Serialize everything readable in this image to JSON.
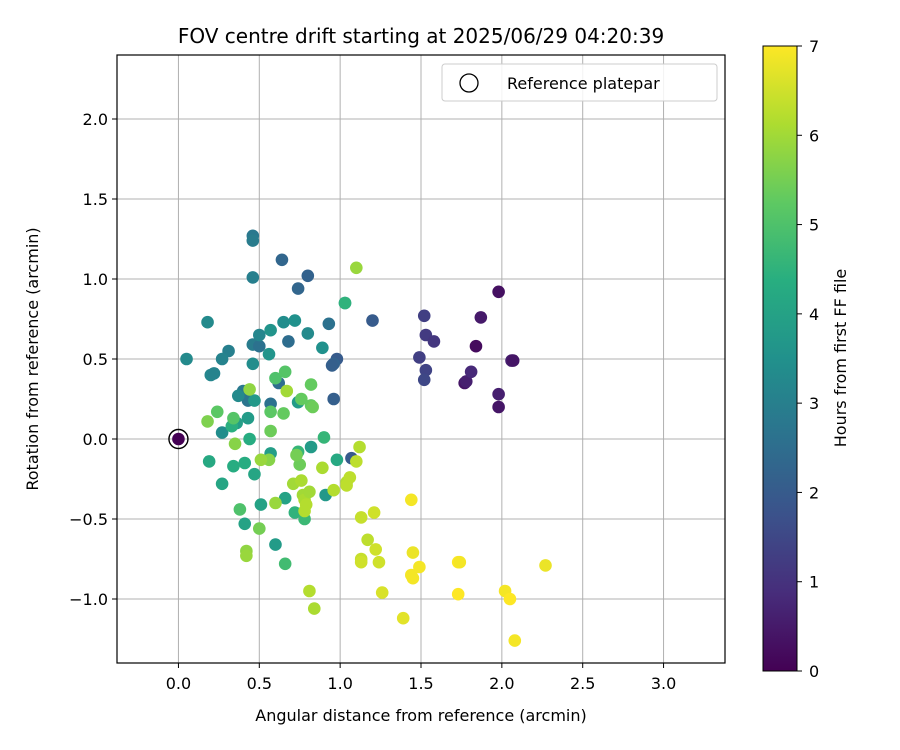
{
  "chart_data": {
    "type": "scatter",
    "title": "FOV centre drift starting at 2025/06/29 04:20:39",
    "xlabel": "Angular distance from reference (arcmin)",
    "ylabel": "Rotation from reference (arcmin)",
    "xlim": [
      -0.38,
      3.38
    ],
    "ylim": [
      -1.4,
      2.4
    ],
    "xticks": [
      "0.0",
      "0.5",
      "1.0",
      "1.5",
      "2.0",
      "2.5",
      "3.0"
    ],
    "xtick_values": [
      0,
      0.5,
      1,
      1.5,
      2,
      2.5,
      3
    ],
    "yticks": [
      "2.0",
      "1.5",
      "1.0",
      "0.5",
      "0.0",
      "−0.5",
      "−1.0"
    ],
    "ytick_values": [
      2,
      1.5,
      1,
      0.5,
      0,
      -0.5,
      -1
    ],
    "grid": true,
    "legend": {
      "label": "Reference platepar",
      "placement": "upper right"
    },
    "reference_point": {
      "x": 0.0,
      "y": 0.0
    },
    "colorbar": {
      "label": "Hours from first FF file",
      "colormap": "viridis",
      "range": [
        0,
        7
      ],
      "ticks": [
        "0",
        "1",
        "2",
        "3",
        "4",
        "5",
        "6",
        "7"
      ]
    },
    "points": [
      {
        "x": 0.0,
        "y": 0.0,
        "h": 0.0
      },
      {
        "x": 1.98,
        "y": 0.92,
        "h": 0.3
      },
      {
        "x": 1.84,
        "y": 0.58,
        "h": 0.2
      },
      {
        "x": 1.87,
        "y": 0.76,
        "h": 0.5
      },
      {
        "x": 2.06,
        "y": 0.49,
        "h": 0.6
      },
      {
        "x": 2.07,
        "y": 0.49,
        "h": 0.4
      },
      {
        "x": 1.77,
        "y": 0.35,
        "h": 0.4
      },
      {
        "x": 1.78,
        "y": 0.36,
        "h": 0.6
      },
      {
        "x": 1.81,
        "y": 0.42,
        "h": 0.8
      },
      {
        "x": 1.98,
        "y": 0.28,
        "h": 0.6
      },
      {
        "x": 1.98,
        "y": 0.2,
        "h": 0.4
      },
      {
        "x": 1.52,
        "y": 0.77,
        "h": 1.3
      },
      {
        "x": 1.53,
        "y": 0.65,
        "h": 1.2
      },
      {
        "x": 1.58,
        "y": 0.61,
        "h": 1.1
      },
      {
        "x": 1.49,
        "y": 0.51,
        "h": 1.3
      },
      {
        "x": 1.53,
        "y": 0.43,
        "h": 1.4
      },
      {
        "x": 1.52,
        "y": 0.37,
        "h": 1.5
      },
      {
        "x": 1.2,
        "y": 0.74,
        "h": 2.0
      },
      {
        "x": 0.98,
        "y": 0.5,
        "h": 2.0
      },
      {
        "x": 0.96,
        "y": 0.47,
        "h": 2.2
      },
      {
        "x": 0.95,
        "y": 0.46,
        "h": 2.1
      },
      {
        "x": 0.96,
        "y": 0.25,
        "h": 2.1
      },
      {
        "x": 1.07,
        "y": -0.12,
        "h": 2.0
      },
      {
        "x": 0.8,
        "y": 1.02,
        "h": 2.2
      },
      {
        "x": 0.64,
        "y": 1.12,
        "h": 2.3
      },
      {
        "x": 0.74,
        "y": 0.94,
        "h": 2.3
      },
      {
        "x": 0.46,
        "y": 1.27,
        "h": 2.8
      },
      {
        "x": 0.46,
        "y": 1.24,
        "h": 2.9
      },
      {
        "x": 0.46,
        "y": 1.01,
        "h": 3.0
      },
      {
        "x": 0.93,
        "y": 0.72,
        "h": 2.6
      },
      {
        "x": 0.68,
        "y": 0.61,
        "h": 2.5
      },
      {
        "x": 0.62,
        "y": 0.35,
        "h": 2.5
      },
      {
        "x": 0.57,
        "y": 0.22,
        "h": 2.6
      },
      {
        "x": 0.4,
        "y": 0.3,
        "h": 2.8
      },
      {
        "x": 0.46,
        "y": 0.59,
        "h": 2.9
      },
      {
        "x": 0.5,
        "y": 0.58,
        "h": 2.6
      },
      {
        "x": 0.43,
        "y": 0.24,
        "h": 2.7
      },
      {
        "x": 0.31,
        "y": 0.55,
        "h": 3.0
      },
      {
        "x": 0.27,
        "y": 0.5,
        "h": 3.1
      },
      {
        "x": 0.2,
        "y": 0.4,
        "h": 3.2
      },
      {
        "x": 0.22,
        "y": 0.41,
        "h": 3.1
      },
      {
        "x": 0.05,
        "y": 0.5,
        "h": 3.3
      },
      {
        "x": 0.18,
        "y": 0.73,
        "h": 3.3
      },
      {
        "x": 0.5,
        "y": 0.65,
        "h": 3.2
      },
      {
        "x": 0.65,
        "y": 0.73,
        "h": 3.4
      },
      {
        "x": 0.72,
        "y": 0.74,
        "h": 3.5
      },
      {
        "x": 0.57,
        "y": 0.68,
        "h": 3.6
      },
      {
        "x": 0.8,
        "y": 0.66,
        "h": 3.3
      },
      {
        "x": 1.03,
        "y": 0.85,
        "h": 3.5
      },
      {
        "x": 0.89,
        "y": 0.57,
        "h": 3.5
      },
      {
        "x": 0.56,
        "y": 0.53,
        "h": 3.6
      },
      {
        "x": 0.46,
        "y": 0.47,
        "h": 3.4
      },
      {
        "x": 0.37,
        "y": 0.27,
        "h": 3.3
      },
      {
        "x": 0.47,
        "y": 0.24,
        "h": 3.7
      },
      {
        "x": 0.43,
        "y": 0.13,
        "h": 3.8
      },
      {
        "x": 0.36,
        "y": 0.1,
        "h": 3.9
      },
      {
        "x": 0.27,
        "y": 0.04,
        "h": 3.4
      },
      {
        "x": 0.74,
        "y": 0.23,
        "h": 3.8
      },
      {
        "x": 0.91,
        "y": -0.35,
        "h": 3.7
      },
      {
        "x": 0.82,
        "y": -0.05,
        "h": 3.8
      },
      {
        "x": 0.57,
        "y": -0.09,
        "h": 3.9
      },
      {
        "x": 0.6,
        "y": -0.66,
        "h": 3.8
      },
      {
        "x": 0.66,
        "y": -0.37,
        "h": 4.0
      },
      {
        "x": 0.51,
        "y": -0.41,
        "h": 4.0
      },
      {
        "x": 0.47,
        "y": -0.22,
        "h": 4.1
      },
      {
        "x": 0.41,
        "y": -0.53,
        "h": 4.0
      },
      {
        "x": 0.19,
        "y": -0.14,
        "h": 4.2
      },
      {
        "x": 0.27,
        "y": -0.28,
        "h": 4.1
      },
      {
        "x": 0.34,
        "y": -0.17,
        "h": 4.3
      },
      {
        "x": 0.41,
        "y": -0.15,
        "h": 4.3
      },
      {
        "x": 0.44,
        "y": 0.0,
        "h": 4.3
      },
      {
        "x": 0.33,
        "y": 0.08,
        "h": 4.4
      },
      {
        "x": 0.98,
        "y": -0.13,
        "h": 4.2
      },
      {
        "x": 1.03,
        "y": 0.85,
        "h": 4.5
      },
      {
        "x": 0.72,
        "y": -0.46,
        "h": 4.5
      },
      {
        "x": 0.74,
        "y": -0.08,
        "h": 4.6
      },
      {
        "x": 0.9,
        "y": 0.01,
        "h": 4.6
      },
      {
        "x": 0.66,
        "y": -0.78,
        "h": 4.8
      },
      {
        "x": 0.78,
        "y": -0.5,
        "h": 4.7
      },
      {
        "x": 0.38,
        "y": -0.44,
        "h": 5.0
      },
      {
        "x": 0.34,
        "y": 0.13,
        "h": 5.1
      },
      {
        "x": 0.24,
        "y": 0.17,
        "h": 5.2
      },
      {
        "x": 0.57,
        "y": 0.17,
        "h": 5.2
      },
      {
        "x": 0.6,
        "y": 0.38,
        "h": 5.0
      },
      {
        "x": 0.66,
        "y": 0.42,
        "h": 5.1
      },
      {
        "x": 0.82,
        "y": 0.34,
        "h": 5.3
      },
      {
        "x": 0.76,
        "y": 0.25,
        "h": 5.3
      },
      {
        "x": 0.82,
        "y": 0.21,
        "h": 5.3
      },
      {
        "x": 0.83,
        "y": 0.2,
        "h": 5.4
      },
      {
        "x": 0.57,
        "y": 0.05,
        "h": 5.4
      },
      {
        "x": 0.65,
        "y": 0.16,
        "h": 5.3
      },
      {
        "x": 0.75,
        "y": -0.16,
        "h": 5.4
      },
      {
        "x": 0.73,
        "y": -0.1,
        "h": 5.5
      },
      {
        "x": 0.18,
        "y": 0.11,
        "h": 5.6
      },
      {
        "x": 0.56,
        "y": -0.13,
        "h": 5.7
      },
      {
        "x": 0.5,
        "y": -0.56,
        "h": 5.5
      },
      {
        "x": 0.44,
        "y": 0.31,
        "h": 5.8
      },
      {
        "x": 0.35,
        "y": -0.03,
        "h": 5.7
      },
      {
        "x": 0.42,
        "y": -0.7,
        "h": 5.8
      },
      {
        "x": 0.42,
        "y": -0.73,
        "h": 5.9
      },
      {
        "x": 0.51,
        "y": -0.13,
        "h": 5.9
      },
      {
        "x": 0.67,
        "y": 0.3,
        "h": 6.0
      },
      {
        "x": 0.6,
        "y": -0.4,
        "h": 5.9
      },
      {
        "x": 0.71,
        "y": -0.28,
        "h": 6.0
      },
      {
        "x": 0.76,
        "y": -0.26,
        "h": 6.1
      },
      {
        "x": 0.77,
        "y": -0.35,
        "h": 6.0
      },
      {
        "x": 0.78,
        "y": -0.38,
        "h": 6.1
      },
      {
        "x": 0.79,
        "y": -0.41,
        "h": 6.2
      },
      {
        "x": 0.78,
        "y": -0.45,
        "h": 6.2
      },
      {
        "x": 0.81,
        "y": -0.33,
        "h": 6.0
      },
      {
        "x": 0.84,
        "y": -1.06,
        "h": 6.1
      },
      {
        "x": 0.81,
        "y": -0.95,
        "h": 6.2
      },
      {
        "x": 0.89,
        "y": -0.18,
        "h": 6.1
      },
      {
        "x": 0.96,
        "y": -0.32,
        "h": 6.2
      },
      {
        "x": 1.04,
        "y": -0.27,
        "h": 6.2
      },
      {
        "x": 1.04,
        "y": -0.29,
        "h": 6.3
      },
      {
        "x": 1.06,
        "y": -0.24,
        "h": 6.3
      },
      {
        "x": 1.1,
        "y": 1.07,
        "h": 5.9
      },
      {
        "x": 1.12,
        "y": -0.05,
        "h": 6.2
      },
      {
        "x": 1.1,
        "y": -0.14,
        "h": 6.3
      },
      {
        "x": 1.13,
        "y": -0.49,
        "h": 6.4
      },
      {
        "x": 1.17,
        "y": -0.63,
        "h": 6.3
      },
      {
        "x": 1.13,
        "y": -0.75,
        "h": 6.4
      },
      {
        "x": 1.13,
        "y": -0.77,
        "h": 6.5
      },
      {
        "x": 1.21,
        "y": -0.46,
        "h": 6.5
      },
      {
        "x": 1.22,
        "y": -0.69,
        "h": 6.5
      },
      {
        "x": 1.24,
        "y": -0.77,
        "h": 6.5
      },
      {
        "x": 1.26,
        "y": -0.96,
        "h": 6.6
      },
      {
        "x": 1.39,
        "y": -1.12,
        "h": 6.7
      },
      {
        "x": 1.44,
        "y": -0.38,
        "h": 6.9
      },
      {
        "x": 1.45,
        "y": -0.71,
        "h": 6.8
      },
      {
        "x": 1.44,
        "y": -0.85,
        "h": 6.9
      },
      {
        "x": 1.45,
        "y": -0.87,
        "h": 6.9
      },
      {
        "x": 1.49,
        "y": -0.8,
        "h": 6.9
      },
      {
        "x": 1.73,
        "y": -0.77,
        "h": 7.0
      },
      {
        "x": 1.74,
        "y": -0.77,
        "h": 6.9
      },
      {
        "x": 1.73,
        "y": -0.97,
        "h": 7.0
      },
      {
        "x": 2.02,
        "y": -0.95,
        "h": 6.9
      },
      {
        "x": 2.05,
        "y": -1.0,
        "h": 7.0
      },
      {
        "x": 2.08,
        "y": -1.26,
        "h": 6.9
      },
      {
        "x": 2.27,
        "y": -0.79,
        "h": 6.8
      }
    ]
  }
}
